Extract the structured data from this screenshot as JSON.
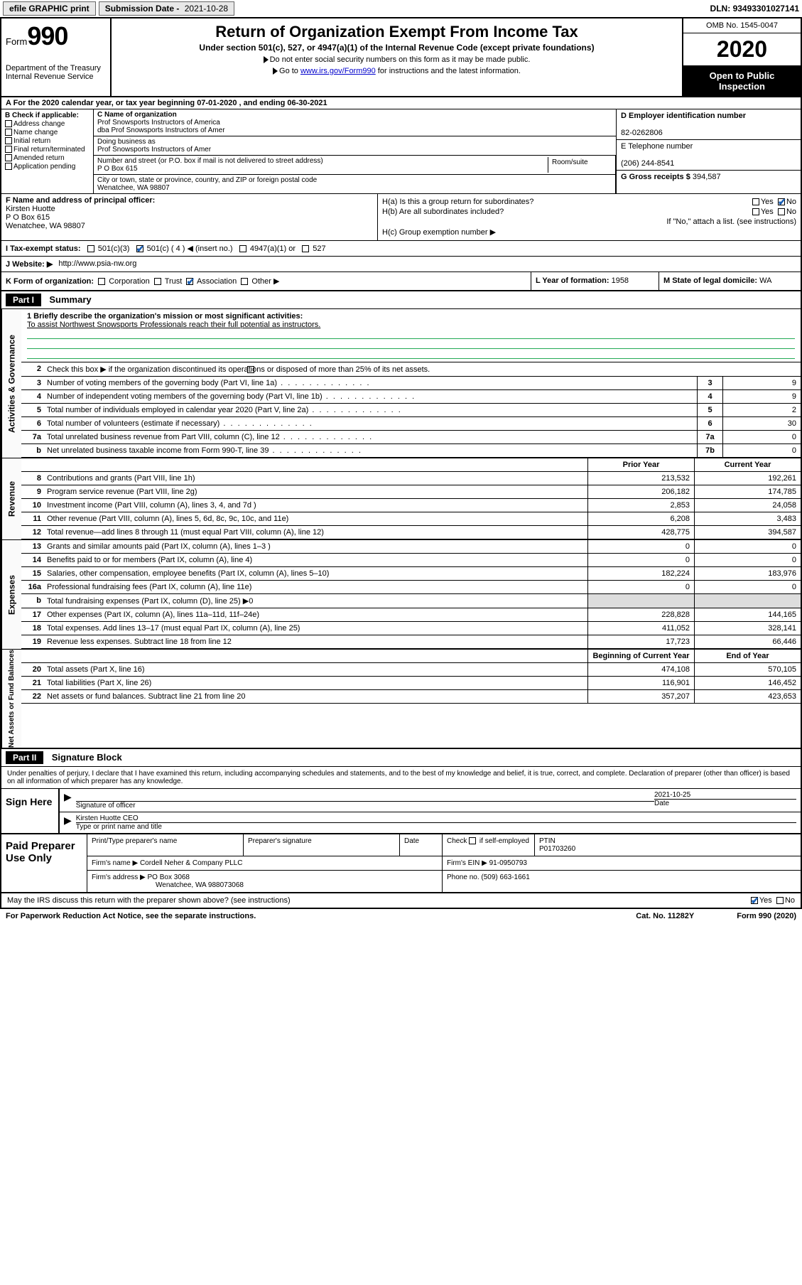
{
  "topbar": {
    "efile": "efile GRAPHIC print",
    "sub_label": "Submission Date -",
    "sub_date": "2021-10-28",
    "dln_label": "DLN:",
    "dln": "93493301027141"
  },
  "header": {
    "form_word": "Form",
    "form_num": "990",
    "dept": "Department of the Treasury",
    "irs": "Internal Revenue Service",
    "title": "Return of Organization Exempt From Income Tax",
    "subtitle": "Under section 501(c), 527, or 4947(a)(1) of the Internal Revenue Code (except private foundations)",
    "note1": "Do not enter social security numbers on this form as it may be made public.",
    "note2_pre": "Go to ",
    "note2_link": "www.irs.gov/Form990",
    "note2_post": " for instructions and the latest information.",
    "omb": "OMB No. 1545-0047",
    "year": "2020",
    "open1": "Open to Public",
    "open2": "Inspection"
  },
  "lineA": "A   For the 2020 calendar year, or tax year beginning 07-01-2020     , and ending 06-30-2021",
  "boxB": {
    "hdr": "B Check if applicable:",
    "items": [
      "Address change",
      "Name change",
      "Initial return",
      "Final return/terminated",
      "Amended return",
      "Application pending"
    ]
  },
  "boxC": {
    "name_lbl": "C Name of organization",
    "name": "Prof Snowsports Instructors of America",
    "dba_line": "dba Prof Snowsports Instructors of Amer",
    "dba_lbl": "Doing business as",
    "dba": "Prof Snowsports Instructors of Amer",
    "addr_lbl": "Number and street (or P.O. box if mail is not delivered to street address)",
    "addr": "P O Box 615",
    "room_lbl": "Room/suite",
    "city_lbl": "City or town, state or province, country, and ZIP or foreign postal code",
    "city": "Wenatchee, WA  98807"
  },
  "boxD": {
    "lbl": "D Employer identification number",
    "val": "82-0262806"
  },
  "boxE": {
    "lbl": "E Telephone number",
    "val": "(206) 244-8541"
  },
  "boxG": {
    "lbl": "G Gross receipts $",
    "val": "394,587"
  },
  "boxF": {
    "lbl": "F Name and address of principal officer:",
    "name": "Kirsten Huotte",
    "addr1": "P O Box 615",
    "addr2": "Wenatchee, WA  98807"
  },
  "boxH": {
    "a": "H(a)  Is this a group return for subordinates?",
    "a_yes": "Yes",
    "a_no": "No",
    "b": "H(b)  Are all subordinates included?",
    "b_yes": "Yes",
    "b_no": "No",
    "b_note": "If \"No,\" attach a list. (see instructions)",
    "c": "H(c)  Group exemption number ▶"
  },
  "boxI": {
    "lbl": "I      Tax-exempt status:",
    "o1": "501(c)(3)",
    "o2": "501(c) ( 4 ) ◀ (insert no.)",
    "o3": "4947(a)(1) or",
    "o4": "527"
  },
  "boxJ": {
    "lbl": "J     Website: ▶",
    "val": "http://www.psia-nw.org"
  },
  "boxK": {
    "lbl": "K Form of organization:",
    "o1": "Corporation",
    "o2": "Trust",
    "o3": "Association",
    "o4": "Other ▶"
  },
  "boxL": {
    "lbl": "L Year of formation:",
    "val": "1958"
  },
  "boxM": {
    "lbl": "M State of legal domicile:",
    "val": "WA"
  },
  "part1": {
    "hdr": "Part I",
    "title": "Summary"
  },
  "summary": {
    "l1_lbl": "1   Briefly describe the organization's mission or most significant activities:",
    "l1_txt": "To assist Northwest Snowsports Professionals reach their full potential as instructors.",
    "l2": "Check this box ▶        if the organization discontinued its operations or disposed of more than 25% of its net assets.",
    "rows": [
      {
        "n": "3",
        "t": "Number of voting members of the governing body (Part VI, line 1a)",
        "b": "3",
        "v": "9"
      },
      {
        "n": "4",
        "t": "Number of independent voting members of the governing body (Part VI, line 1b)",
        "b": "4",
        "v": "9"
      },
      {
        "n": "5",
        "t": "Total number of individuals employed in calendar year 2020 (Part V, line 2a)",
        "b": "5",
        "v": "2"
      },
      {
        "n": "6",
        "t": "Total number of volunteers (estimate if necessary)",
        "b": "6",
        "v": "30"
      },
      {
        "n": "7a",
        "t": "Total unrelated business revenue from Part VIII, column (C), line 12",
        "b": "7a",
        "v": "0"
      },
      {
        "n": "b",
        "t": "Net unrelated business taxable income from Form 990-T, line 39",
        "b": "7b",
        "v": "0"
      }
    ]
  },
  "revenue": {
    "hdr_prior": "Prior Year",
    "hdr_curr": "Current Year",
    "rows": [
      {
        "n": "8",
        "t": "Contributions and grants (Part VIII, line 1h)",
        "p": "213,532",
        "c": "192,261"
      },
      {
        "n": "9",
        "t": "Program service revenue (Part VIII, line 2g)",
        "p": "206,182",
        "c": "174,785"
      },
      {
        "n": "10",
        "t": "Investment income (Part VIII, column (A), lines 3, 4, and 7d )",
        "p": "2,853",
        "c": "24,058"
      },
      {
        "n": "11",
        "t": "Other revenue (Part VIII, column (A), lines 5, 6d, 8c, 9c, 10c, and 11e)",
        "p": "6,208",
        "c": "3,483"
      },
      {
        "n": "12",
        "t": "Total revenue—add lines 8 through 11 (must equal Part VIII, column (A), line 12)",
        "p": "428,775",
        "c": "394,587"
      }
    ]
  },
  "expenses": {
    "rows": [
      {
        "n": "13",
        "t": "Grants and similar amounts paid (Part IX, column (A), lines 1–3 )",
        "p": "0",
        "c": "0"
      },
      {
        "n": "14",
        "t": "Benefits paid to or for members (Part IX, column (A), line 4)",
        "p": "0",
        "c": "0"
      },
      {
        "n": "15",
        "t": "Salaries, other compensation, employee benefits (Part IX, column (A), lines 5–10)",
        "p": "182,224",
        "c": "183,976"
      },
      {
        "n": "16a",
        "t": "Professional fundraising fees (Part IX, column (A), line 11e)",
        "p": "0",
        "c": "0"
      },
      {
        "n": "b",
        "t": "Total fundraising expenses (Part IX, column (D), line 25) ▶0",
        "p": "",
        "c": ""
      },
      {
        "n": "17",
        "t": "Other expenses (Part IX, column (A), lines 11a–11d, 11f–24e)",
        "p": "228,828",
        "c": "144,165"
      },
      {
        "n": "18",
        "t": "Total expenses. Add lines 13–17 (must equal Part IX, column (A), line 25)",
        "p": "411,052",
        "c": "328,141"
      },
      {
        "n": "19",
        "t": "Revenue less expenses. Subtract line 18 from line 12",
        "p": "17,723",
        "c": "66,446"
      }
    ]
  },
  "netassets": {
    "hdr_beg": "Beginning of Current Year",
    "hdr_end": "End of Year",
    "rows": [
      {
        "n": "20",
        "t": "Total assets (Part X, line 16)",
        "p": "474,108",
        "c": "570,105"
      },
      {
        "n": "21",
        "t": "Total liabilities (Part X, line 26)",
        "p": "116,901",
        "c": "146,452"
      },
      {
        "n": "22",
        "t": "Net assets or fund balances. Subtract line 21 from line 20",
        "p": "357,207",
        "c": "423,653"
      }
    ]
  },
  "vtabs": {
    "ag": "Activities & Governance",
    "rev": "Revenue",
    "exp": "Expenses",
    "na": "Net Assets or Fund Balances"
  },
  "part2": {
    "hdr": "Part II",
    "title": "Signature Block"
  },
  "sig": {
    "decl": "Under penalties of perjury, I declare that I have examined this return, including accompanying schedules and statements, and to the best of my knowledge and belief, it is true, correct, and complete. Declaration of preparer (other than officer) is based on all information of which preparer has any knowledge.",
    "sign_here": "Sign Here",
    "sig_lbl": "Signature of officer",
    "date_lbl": "Date",
    "date": "2021-10-25",
    "name": "Kirsten Huotte CEO",
    "name_lbl": "Type or print name and title"
  },
  "prep": {
    "title": "Paid Preparer Use Only",
    "h1": "Print/Type preparer's name",
    "h2": "Preparer's signature",
    "h3": "Date",
    "h4_a": "Check",
    "h4_b": "if self-employed",
    "h5": "PTIN",
    "ptin": "P01703260",
    "firm_lbl": "Firm's name     ▶",
    "firm": "Cordell Neher & Company PLLC",
    "ein_lbl": "Firm's EIN ▶",
    "ein": "91-0950793",
    "addr_lbl": "Firm's address ▶",
    "addr1": "PO Box 3068",
    "addr2": "Wenatchee, WA  988073068",
    "phone_lbl": "Phone no.",
    "phone": "(509) 663-1661"
  },
  "footer": {
    "discuss": "May the IRS discuss this return with the preparer shown above? (see instructions)",
    "yes": "Yes",
    "no": "No",
    "pra": "For Paperwork Reduction Act Notice, see the separate instructions.",
    "cat": "Cat. No. 11282Y",
    "form": "Form 990 (2020)"
  }
}
